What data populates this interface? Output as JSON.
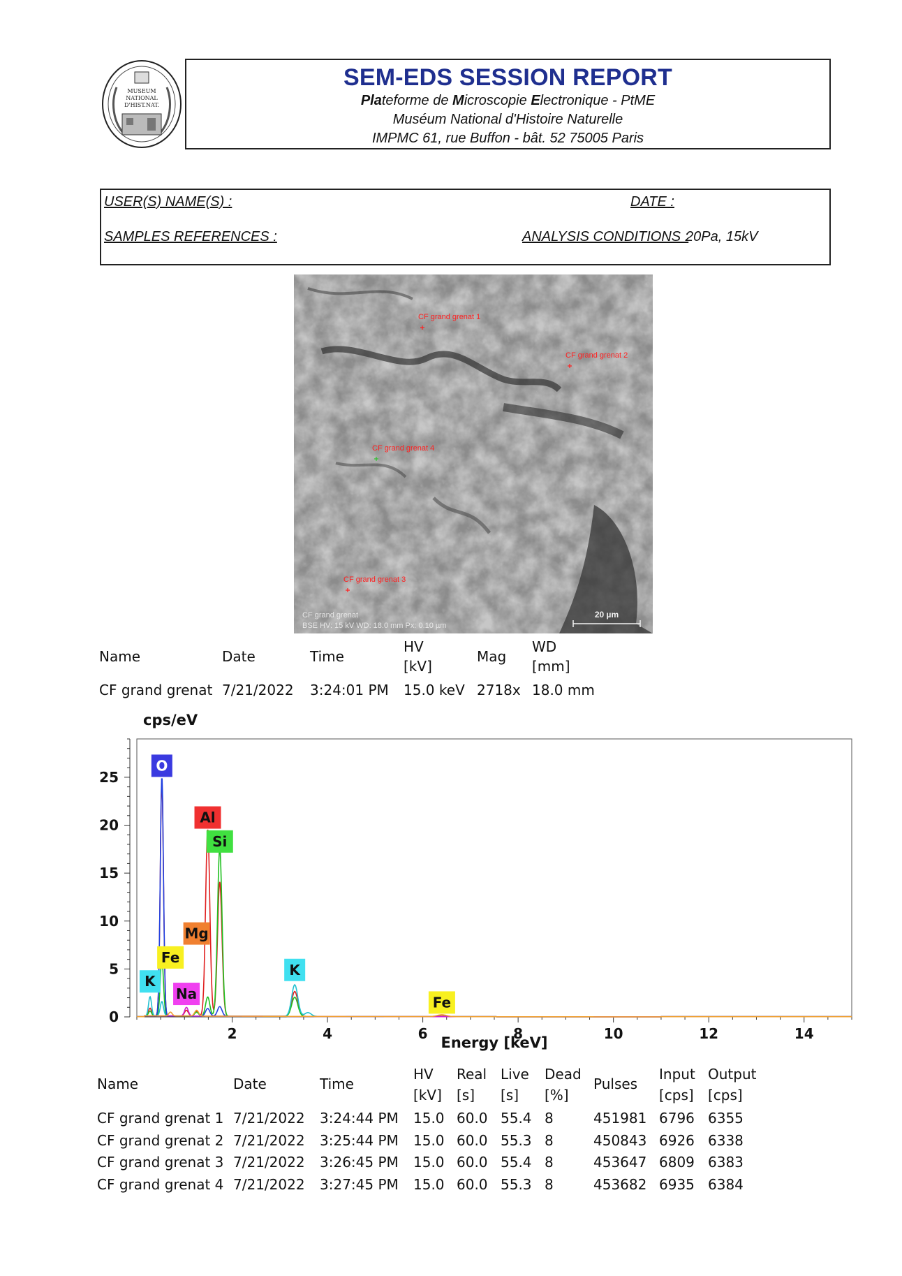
{
  "header": {
    "logo_text": "MUSEUM NATIONAL D'HIST.NAT.",
    "title": "SEM-EDS SESSION REPORT",
    "line1_parts": [
      "P",
      "la",
      "teforme de ",
      "M",
      "icroscopie ",
      "E",
      "lectronique - PtME"
    ],
    "line2": "Muséum National d'Histoire Naturelle",
    "line3": "IMPMC 61, rue Buffon - bât. 52 75005 Paris"
  },
  "info": {
    "users_label": "USER(S) NAME(S) :",
    "date_label": "DATE :",
    "samples_label": "SAMPLES REFERENCES :",
    "conditions_label": "ANALYSIS CONDITIONS :",
    "conditions_value": " 20Pa, 15kV"
  },
  "sem_image": {
    "labels": [
      "CF grand grenat 1",
      "CF grand grenat 2",
      "CF grand grenat 4",
      "CF grand grenat 3"
    ],
    "info_line1": "CF grand grenat",
    "info_line2": "BSE   HV: 15 kV   WD: 18.0 mm   Px: 0.10 µm",
    "scale_bar": "20 µm"
  },
  "image_table": {
    "headers": [
      "Name",
      "Date",
      "Time",
      "HV",
      "[kV]",
      "Mag",
      "WD",
      "[mm]"
    ],
    "row": [
      "CF grand grenat",
      "7/21/2022",
      "3:24:01 PM",
      "15.0 keV",
      "2718x",
      "18.0 mm"
    ]
  },
  "chart_data": {
    "type": "line",
    "ylabel": "cps/eV",
    "xlabel": "Energy [keV]",
    "xlim": [
      0,
      15
    ],
    "ylim": [
      0,
      29
    ],
    "xticks": [
      2,
      4,
      6,
      8,
      10,
      12,
      14
    ],
    "yticks": [
      0,
      5,
      10,
      15,
      20,
      25
    ],
    "series": [
      {
        "color": "#e02020",
        "peaks": [
          [
            0.277,
            0.8
          ],
          [
            0.525,
            24.5
          ],
          [
            1.041,
            0.6
          ],
          [
            1.254,
            0.5
          ],
          [
            1.487,
            19.5
          ],
          [
            1.74,
            14.0
          ],
          [
            3.313,
            2.6
          ],
          [
            6.4,
            0.15
          ]
        ]
      },
      {
        "color": "#20c020",
        "peaks": [
          [
            0.277,
            0.5
          ],
          [
            0.525,
            6.0
          ],
          [
            1.254,
            0.4
          ],
          [
            1.487,
            2.0
          ],
          [
            1.74,
            17.5
          ],
          [
            3.313,
            2.0
          ]
        ]
      },
      {
        "color": "#2040e0",
        "peaks": [
          [
            0.525,
            25.0
          ],
          [
            1.487,
            0.8
          ],
          [
            1.74,
            1.0
          ]
        ]
      },
      {
        "color": "#20c0d0",
        "peaks": [
          [
            0.277,
            2.0
          ],
          [
            0.525,
            1.5
          ],
          [
            3.313,
            3.3
          ],
          [
            3.59,
            0.4
          ]
        ]
      },
      {
        "color": "#d020d0",
        "peaks": [
          [
            1.041,
            0.9
          ]
        ]
      },
      {
        "color": "#f0a030",
        "peaks": [
          [
            0.705,
            0.4
          ],
          [
            1.254,
            0.6
          ],
          [
            6.4,
            0.2
          ]
        ]
      }
    ],
    "element_labels": [
      {
        "text": "O",
        "energy": 0.525,
        "value": 26.2,
        "bg": "#3a3ae0",
        "fg": "#ffffff"
      },
      {
        "text": "Al",
        "energy": 1.487,
        "value": 20.8,
        "bg": "#f03030",
        "fg": "#111111"
      },
      {
        "text": "Si",
        "energy": 1.74,
        "value": 18.3,
        "bg": "#40e040",
        "fg": "#111111"
      },
      {
        "text": "Mg",
        "energy": 1.254,
        "value": 8.7,
        "bg": "#f08030",
        "fg": "#111111"
      },
      {
        "text": "Fe",
        "energy": 0.705,
        "value": 6.2,
        "bg": "#f8f020",
        "fg": "#111111"
      },
      {
        "text": "K",
        "energy": 0.277,
        "value": 3.7,
        "bg": "#40e0f0",
        "fg": "#111111"
      },
      {
        "text": "Na",
        "energy": 1.041,
        "value": 2.4,
        "bg": "#f040f0",
        "fg": "#111111"
      },
      {
        "text": "K",
        "energy": 3.313,
        "value": 4.9,
        "bg": "#40e0f0",
        "fg": "#111111"
      },
      {
        "text": "Fe",
        "energy": 6.4,
        "value": 1.5,
        "bg": "#f8f020",
        "fg": "#111111"
      }
    ]
  },
  "spectra_table": {
    "headers": {
      "name": "Name",
      "date": "Date",
      "time": "Time",
      "hv": [
        "HV",
        "[kV]"
      ],
      "real": [
        "Real",
        "[s]"
      ],
      "live": [
        "Live",
        "[s]"
      ],
      "dead": [
        "Dead",
        "[%]"
      ],
      "pulses": "Pulses",
      "input": [
        "Input",
        "[cps]"
      ],
      "output": [
        "Output",
        "[cps]"
      ]
    },
    "rows": [
      [
        "CF grand grenat 1",
        "7/21/2022",
        "3:24:44 PM",
        "15.0",
        "60.0",
        "55.4",
        "8",
        "451981",
        "6796",
        "6355"
      ],
      [
        "CF grand grenat 2",
        "7/21/2022",
        "3:25:44 PM",
        "15.0",
        "60.0",
        "55.3",
        "8",
        "450843",
        "6926",
        "6338"
      ],
      [
        "CF grand grenat 3",
        "7/21/2022",
        "3:26:45 PM",
        "15.0",
        "60.0",
        "55.4",
        "8",
        "453647",
        "6809",
        "6383"
      ],
      [
        "CF grand grenat 4",
        "7/21/2022",
        "3:27:45 PM",
        "15.0",
        "60.0",
        "55.3",
        "8",
        "453682",
        "6935",
        "6384"
      ]
    ]
  }
}
